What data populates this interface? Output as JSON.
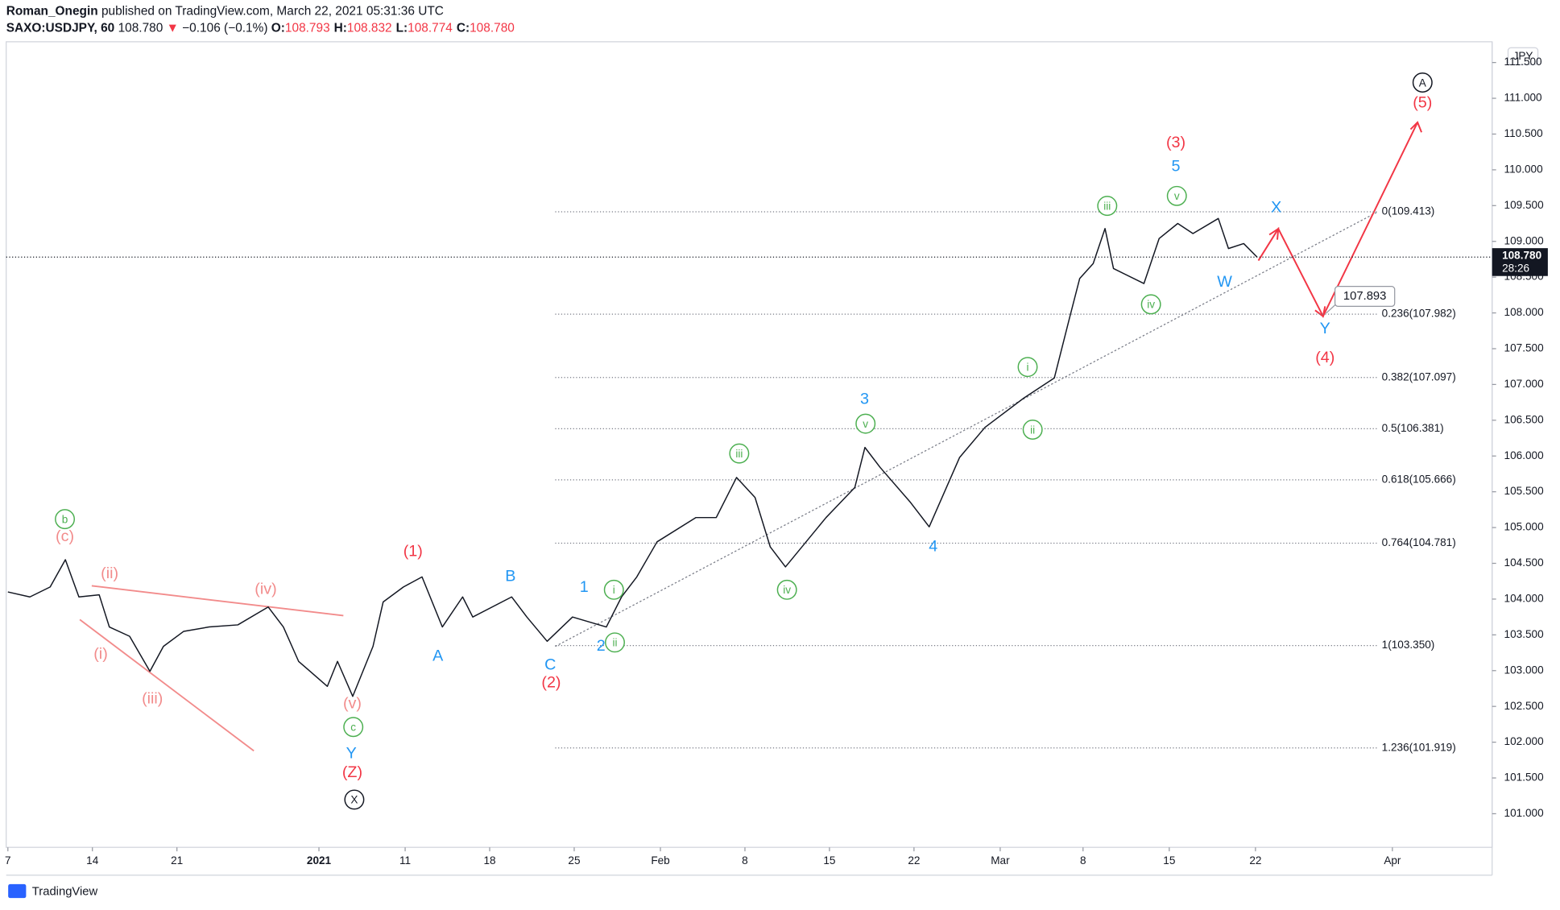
{
  "header": {
    "author": "Roman_Onegin",
    "published": "published on TradingView.com, March 22, 2021 05:31:36 UTC",
    "symbol": "SAXO:USDJPY, 60",
    "price": "108.780",
    "arrow": "▼",
    "change": "−0.106 (−0.1%)",
    "ohlc": [
      {
        "label": "O:",
        "value": "108.793"
      },
      {
        "label": "H:",
        "value": "108.832"
      },
      {
        "label": "L:",
        "value": "108.774"
      },
      {
        "label": "C:",
        "value": "108.780"
      }
    ]
  },
  "chart_data": {
    "type": "line",
    "currency": "JPY",
    "last_price": "108.780",
    "countdown": "28:26",
    "target": 107.893,
    "xlim": [
      -0.1,
      87.8
    ],
    "ylim": [
      100.53,
      111.79
    ],
    "xticks": [
      {
        "value": 0,
        "label": "7"
      },
      {
        "value": 5,
        "label": "14"
      },
      {
        "value": 10,
        "label": "21"
      },
      {
        "value": 18.4,
        "label": "2021"
      },
      {
        "value": 23.5,
        "label": "11"
      },
      {
        "value": 28.5,
        "label": "18"
      },
      {
        "value": 33.5,
        "label": "25"
      },
      {
        "value": 38.6,
        "label": "Feb"
      },
      {
        "value": 43.6,
        "label": "8"
      },
      {
        "value": 48.6,
        "label": "15"
      },
      {
        "value": 53.6,
        "label": "22"
      },
      {
        "value": 58.7,
        "label": "Mar"
      },
      {
        "value": 63.6,
        "label": "8"
      },
      {
        "value": 68.7,
        "label": "15"
      },
      {
        "value": 73.8,
        "label": "22"
      },
      {
        "value": 81.9,
        "label": "Apr"
      }
    ],
    "yticks": [
      {
        "value": 101,
        "label": "101.000"
      },
      {
        "value": 101.5,
        "label": "101.500"
      },
      {
        "value": 102,
        "label": "102.000"
      },
      {
        "value": 102.5,
        "label": "102.500"
      },
      {
        "value": 103,
        "label": "103.000"
      },
      {
        "value": 103.5,
        "label": "103.500"
      },
      {
        "value": 104,
        "label": "104.000"
      },
      {
        "value": 104.5,
        "label": "104.500"
      },
      {
        "value": 105,
        "label": "105.000"
      },
      {
        "value": 105.5,
        "label": "105.500"
      },
      {
        "value": 106,
        "label": "106.000"
      },
      {
        "value": 106.5,
        "label": "106.500"
      },
      {
        "value": 107,
        "label": "107.000"
      },
      {
        "value": 107.5,
        "label": "107.500"
      },
      {
        "value": 108,
        "label": "108.000"
      },
      {
        "value": 108.5,
        "label": "108.500"
      },
      {
        "value": 109,
        "label": "109.000"
      },
      {
        "value": 109.5,
        "label": "109.500"
      },
      {
        "value": 110,
        "label": "110.000"
      },
      {
        "value": 110.5,
        "label": "110.500"
      },
      {
        "value": 111,
        "label": "111.000"
      },
      {
        "value": 111.5,
        "label": "111.500"
      }
    ],
    "fib_levels": [
      {
        "value": 109.413,
        "label": "0(109.413)"
      },
      {
        "value": 107.982,
        "label": "0.236(107.982)"
      },
      {
        "value": 107.097,
        "label": "0.382(107.097)"
      },
      {
        "value": 106.381,
        "label": "0.5(106.381)"
      },
      {
        "value": 105.666,
        "label": "0.618(105.666)"
      },
      {
        "value": 104.781,
        "label": "0.764(104.781)"
      },
      {
        "value": 103.35,
        "label": "1(103.350)"
      },
      {
        "value": 101.919,
        "label": "1.236(101.919)"
      }
    ],
    "series": [
      {
        "name": "SAXO:USDJPY",
        "color": "#131722",
        "x": [
          0,
          1.3,
          2.5,
          3.4,
          4.2,
          5.4,
          6.0,
          7.2,
          8.4,
          9.2,
          10.4,
          11.9,
          13.6,
          15.4,
          16.3,
          17.2,
          18.9,
          19.5,
          20.4,
          21.6,
          22.2,
          23.4,
          24.5,
          25.7,
          26.9,
          27.5,
          29.8,
          30.7,
          31.9,
          33.4,
          35.4,
          36.3,
          37.2,
          38.4,
          40.7,
          41.9,
          43.1,
          44.2,
          45.1,
          46.0,
          48.4,
          50.1,
          50.7,
          51.6,
          53.4,
          54.5,
          56.3,
          57.8,
          60.1,
          61.9,
          62.8,
          63.4,
          64.2,
          64.9,
          65.4,
          67.2,
          68.1,
          69.2,
          70.1,
          71.6,
          72.2,
          73.1,
          73.9
        ],
        "values": [
          104.1,
          104.03,
          104.17,
          104.55,
          104.03,
          104.06,
          103.61,
          103.48,
          102.99,
          103.34,
          103.55,
          103.61,
          103.64,
          103.89,
          103.61,
          103.13,
          102.78,
          103.13,
          102.64,
          103.34,
          103.96,
          104.17,
          104.31,
          103.61,
          104.03,
          103.75,
          104.03,
          103.75,
          103.41,
          103.75,
          103.61,
          104.03,
          104.31,
          104.8,
          105.14,
          105.14,
          105.7,
          105.42,
          104.73,
          104.45,
          105.14,
          105.56,
          106.12,
          105.84,
          105.35,
          105.01,
          105.98,
          106.4,
          106.81,
          107.09,
          107.93,
          108.48,
          108.69,
          109.18,
          108.62,
          108.41,
          109.04,
          109.25,
          109.11,
          109.32,
          108.9,
          108.97,
          108.78
        ]
      }
    ],
    "annotations": [
      {
        "text": "b",
        "color": "#4caf50",
        "circled": true
      },
      {
        "text": "(c)",
        "color": "#f28b8b"
      },
      {
        "text": "(ii)",
        "color": "#f28b8b"
      },
      {
        "text": "(i)",
        "color": "#f28b8b"
      },
      {
        "text": "(iii)",
        "color": "#f28b8b"
      },
      {
        "text": "(iv)",
        "color": "#f28b8b"
      },
      {
        "text": "(v)",
        "color": "#f28b8b"
      },
      {
        "text": "c",
        "color": "#4caf50",
        "circled": true
      },
      {
        "text": "Y",
        "color": "#2196f3"
      },
      {
        "text": "(Z)",
        "color": "#f23645"
      },
      {
        "text": "X",
        "color": "#131722",
        "circled": true
      },
      {
        "text": "(1)",
        "color": "#f23645"
      },
      {
        "text": "A",
        "color": "#2196f3"
      },
      {
        "text": "B",
        "color": "#2196f3"
      },
      {
        "text": "C",
        "color": "#2196f3"
      },
      {
        "text": "(2)",
        "color": "#f23645"
      },
      {
        "text": "1",
        "color": "#2196f3"
      },
      {
        "text": "i",
        "color": "#4caf50",
        "circled": true
      },
      {
        "text": "2",
        "color": "#2196f3"
      },
      {
        "text": "ii",
        "color": "#4caf50",
        "circled": true
      },
      {
        "text": "iii",
        "color": "#4caf50",
        "circled": true
      },
      {
        "text": "iv",
        "color": "#4caf50",
        "circled": true
      },
      {
        "text": "3",
        "color": "#2196f3"
      },
      {
        "text": "v",
        "color": "#4caf50",
        "circled": true
      },
      {
        "text": "4",
        "color": "#2196f3"
      },
      {
        "text": "i",
        "color": "#4caf50",
        "circled": true
      },
      {
        "text": "ii",
        "color": "#4caf50",
        "circled": true
      },
      {
        "text": "iii",
        "color": "#4caf50",
        "circled": true
      },
      {
        "text": "iv",
        "color": "#4caf50",
        "circled": true
      },
      {
        "text": "v",
        "color": "#4caf50",
        "circled": true
      },
      {
        "text": "5",
        "color": "#2196f3"
      },
      {
        "text": "(3)",
        "color": "#f23645"
      },
      {
        "text": "W",
        "color": "#2196f3"
      },
      {
        "text": "X",
        "color": "#2196f3"
      },
      {
        "text": "Y",
        "color": "#2196f3"
      },
      {
        "text": "(4)",
        "color": "#f23645"
      },
      {
        "text": "(5)",
        "color": "#f23645"
      },
      {
        "text": "A",
        "color": "#131722",
        "circled": true
      }
    ]
  },
  "footer": {
    "brand": "TradingView"
  }
}
